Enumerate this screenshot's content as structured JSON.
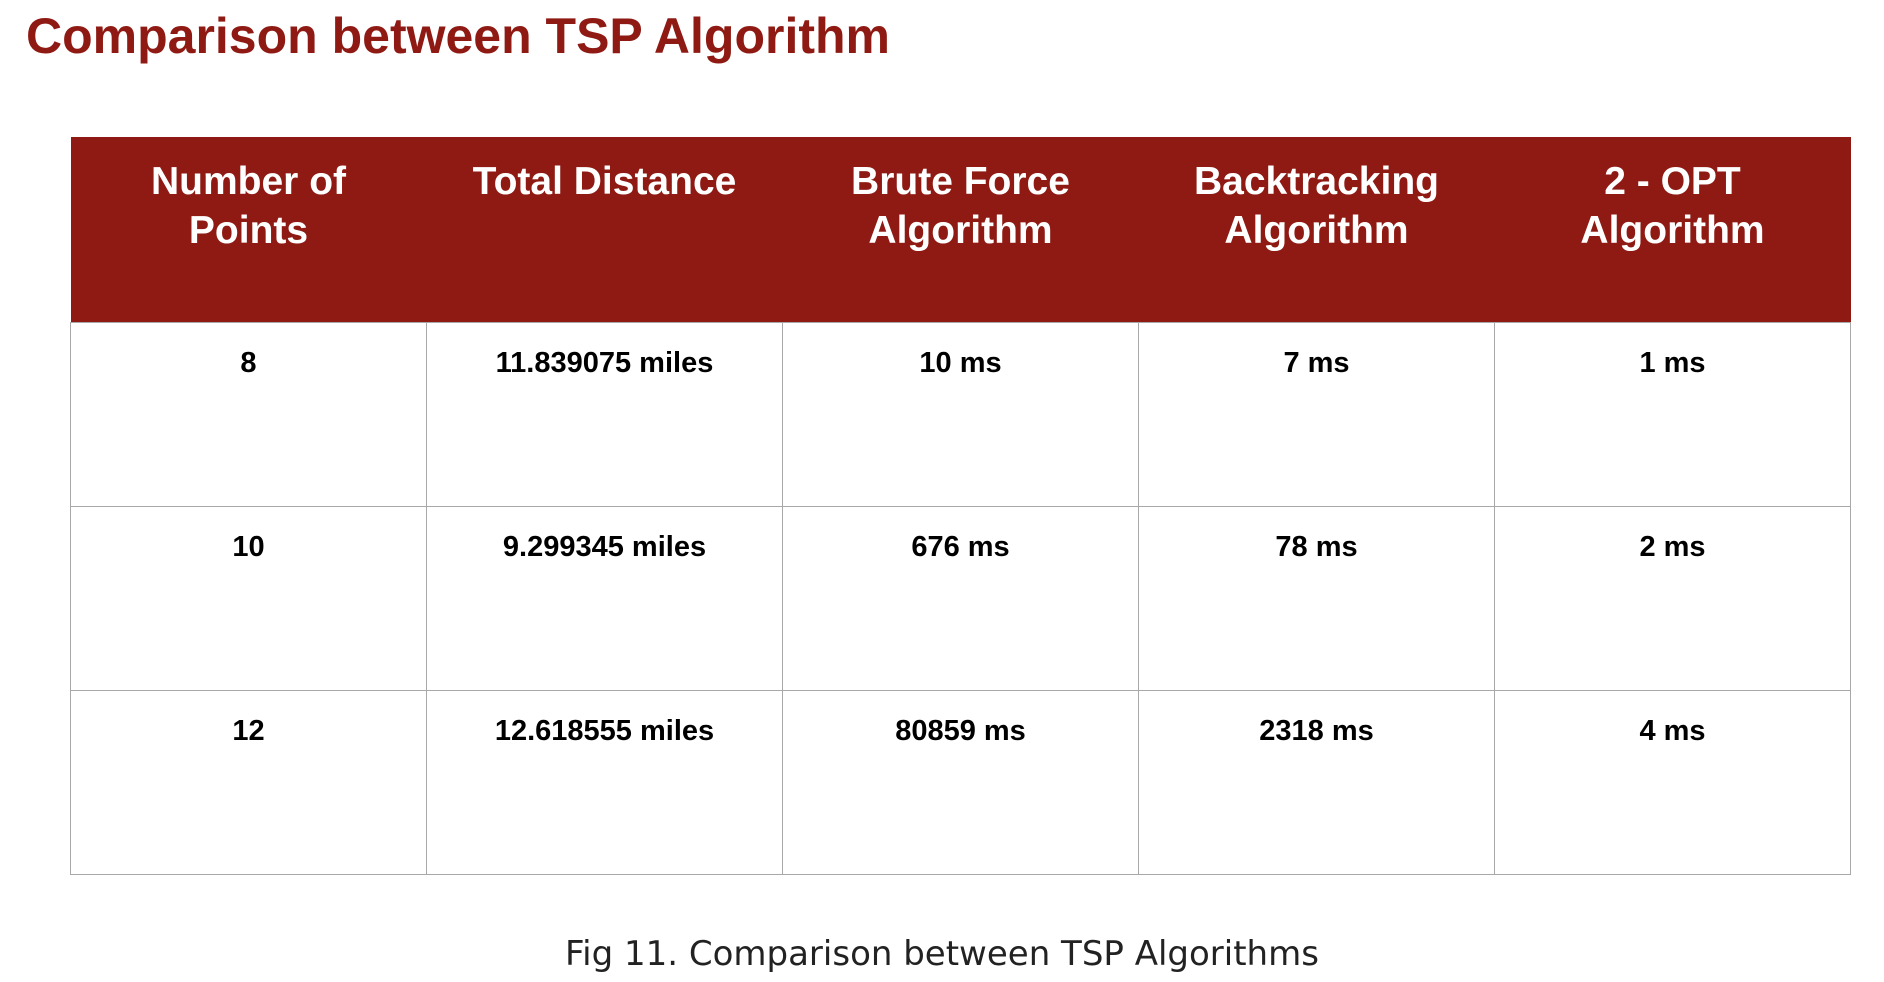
{
  "title": "Comparison between TSP Algorithm",
  "table": {
    "headers": [
      "Number of Points",
      "Total Distance",
      "Brute Force Algorithm",
      "Backtracking Algorithm",
      "2 - OPT Algorithm"
    ],
    "rows": [
      [
        "8",
        "11.839075 miles",
        "10 ms",
        "7 ms",
        "1 ms"
      ],
      [
        "10",
        "9.299345 miles",
        "676 ms",
        "78 ms",
        "2 ms"
      ],
      [
        "12",
        "12.618555 miles",
        "80859 ms",
        "2318 ms",
        "4 ms"
      ]
    ]
  },
  "caption": "Fig 11. Comparison between TSP Algorithms",
  "colors": {
    "accent": "#8e1a13",
    "header_text": "#ffffff",
    "grid": "#a8a8a8"
  }
}
